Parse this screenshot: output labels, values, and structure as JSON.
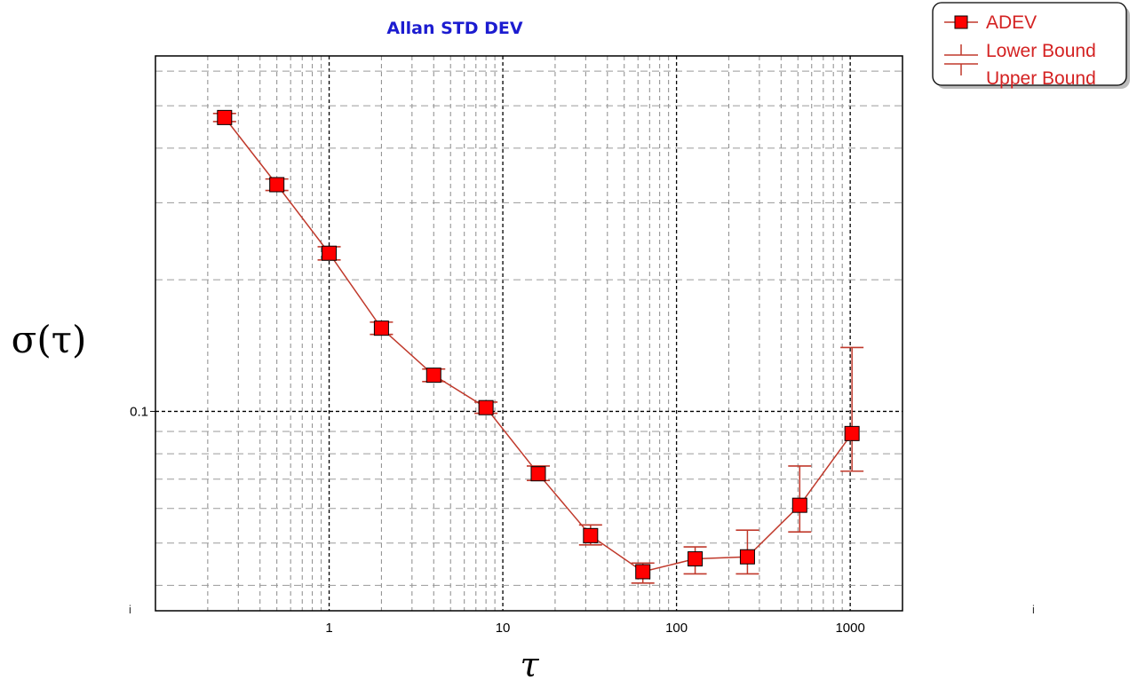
{
  "chart_data": {
    "type": "scatter",
    "title": "Allan STD DEV",
    "xlabel": "τ",
    "ylabel": "σ(τ)",
    "x_scale": "log",
    "y_scale": "log",
    "xlim": [
      0.1,
      2000
    ],
    "ylim": [
      0.035,
      0.65
    ],
    "x_ticks": [
      {
        "value": 1,
        "label": "1"
      },
      {
        "value": 10,
        "label": "10"
      },
      {
        "value": 100,
        "label": "100"
      },
      {
        "value": 1000,
        "label": "1000"
      }
    ],
    "y_ticks": [
      {
        "value": 0.1,
        "label": "0.1"
      }
    ],
    "grid": true,
    "legend": {
      "position": "top-right",
      "entries": [
        "ADEV",
        "Lower Bound",
        "Upper Bound"
      ]
    },
    "series": [
      {
        "name": "ADEV",
        "color": "#ff0000",
        "line_color": "#c0392b",
        "x": [
          0.25,
          0.5,
          1,
          2,
          4,
          8,
          16,
          32,
          64,
          128,
          256,
          512,
          1024
        ],
        "y": [
          0.47,
          0.33,
          0.23,
          0.155,
          0.121,
          0.102,
          0.072,
          0.052,
          0.043,
          0.046,
          0.0465,
          0.061,
          0.089
        ],
        "lower": [
          0.46,
          0.32,
          0.222,
          0.15,
          0.117,
          0.099,
          0.0695,
          0.0495,
          0.0405,
          0.0425,
          0.0425,
          0.053,
          0.073
        ],
        "upper": [
          0.48,
          0.34,
          0.238,
          0.16,
          0.125,
          0.105,
          0.075,
          0.055,
          0.045,
          0.049,
          0.0535,
          0.075,
          0.14
        ]
      }
    ]
  },
  "stray_marks": [
    "i",
    "i"
  ]
}
